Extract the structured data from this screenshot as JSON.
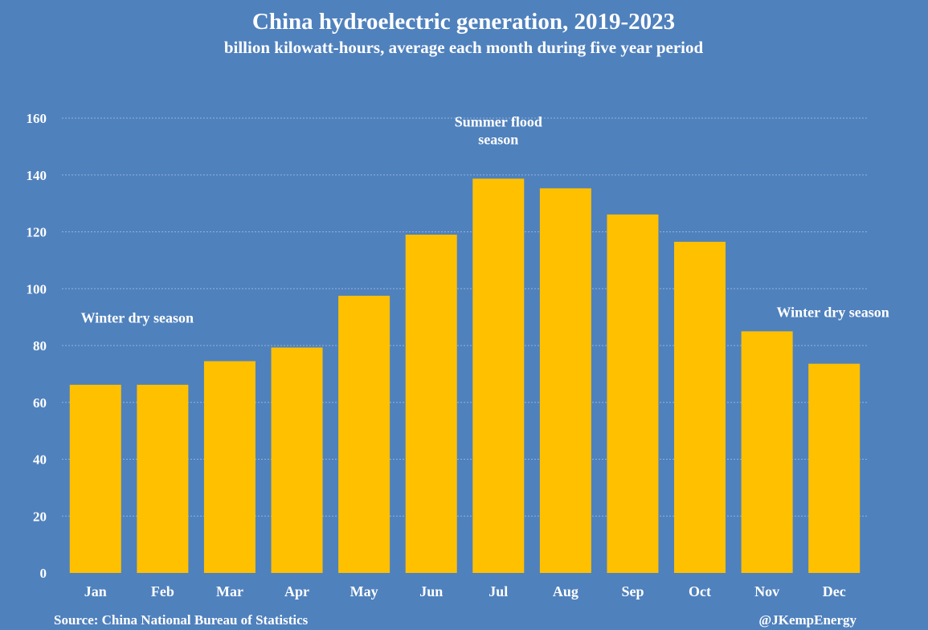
{
  "colors": {
    "background": "#4f81bd",
    "bar": "#ffc000",
    "text": "#ffffff",
    "grid": "#95b3d7"
  },
  "chart_data": {
    "type": "bar",
    "title": "China hydroelectric generation, 2019-2023",
    "subtitle": "billion kilowatt-hours, average each month during five year period",
    "xlabel": "",
    "ylabel": "",
    "categories": [
      "Jan",
      "Feb",
      "Mar",
      "Apr",
      "May",
      "Jun",
      "Jul",
      "Aug",
      "Sep",
      "Oct",
      "Nov",
      "Dec"
    ],
    "values": [
      66.2,
      66.2,
      74.5,
      79.3,
      97.5,
      119.0,
      138.7,
      135.3,
      126.1,
      116.5,
      85.0,
      73.6
    ],
    "ylim": [
      0,
      160
    ],
    "yticks": [
      0,
      20,
      40,
      60,
      80,
      100,
      120,
      140,
      160
    ],
    "grid": true,
    "legend": "none",
    "annotations": [
      {
        "name": "winter-dry-season-left",
        "lines": [
          "Winter dry season"
        ],
        "anchor_category": "Jan",
        "anchor_value": 88
      },
      {
        "name": "summer-flood-season",
        "lines": [
          "Summer flood",
          "season"
        ],
        "anchor_category": "Jul",
        "anchor_value": 157
      },
      {
        "name": "winter-dry-season-right",
        "lines": [
          "Winter dry season"
        ],
        "anchor_category": "Nov",
        "anchor_value": 90
      }
    ]
  },
  "footer": {
    "source": "Source: China National Bureau of Statistics",
    "credit": "@JKempEnergy"
  }
}
